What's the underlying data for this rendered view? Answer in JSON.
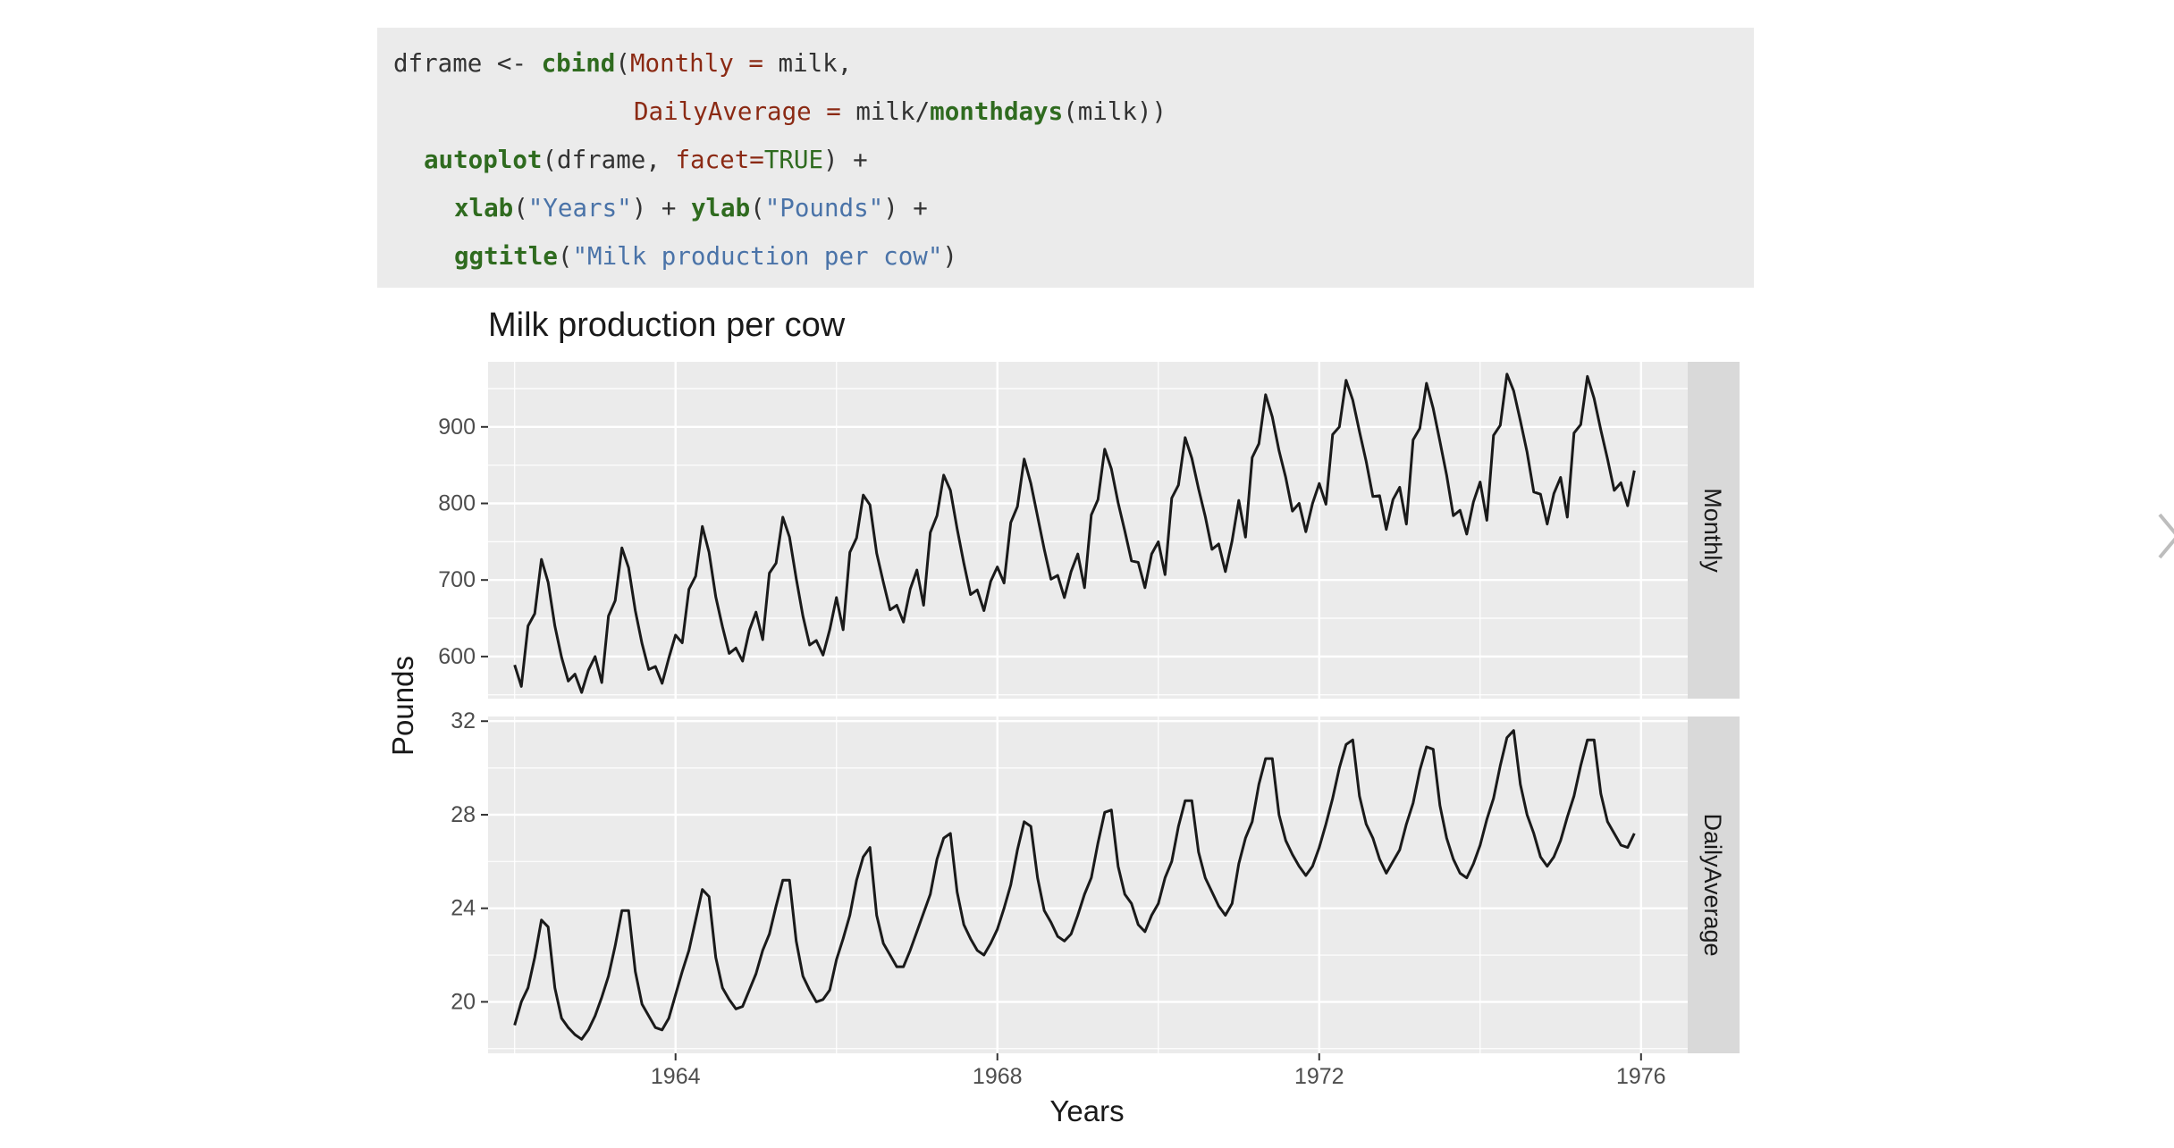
{
  "code": {
    "line1": {
      "p1": "dframe <- ",
      "fn": "cbind",
      "p2": "(",
      "arg": "Monthly = ",
      "p3": "milk,"
    },
    "line2": {
      "arg": "DailyAverage = ",
      "p1": "milk/",
      "fn": "monthdays",
      "p2": "(milk))"
    },
    "line3": {
      "fn": "autoplot",
      "p1": "(dframe, ",
      "arg": "facet=",
      "lit": "TRUE",
      "p2": ") +"
    },
    "line4": {
      "fn1": "xlab",
      "p1": "(",
      "str1": "\"Years\"",
      "p2": ") + ",
      "fn2": "ylab",
      "p3": "(",
      "str2": "\"Pounds\"",
      "p4": ") +"
    },
    "line5": {
      "fn": "ggtitle",
      "p1": "(",
      "str": "\"Milk production per cow\"",
      "p2": ")"
    }
  },
  "icons": {
    "next": "chevron-right-icon"
  },
  "colors": {
    "panel_bg": "#ebebeb",
    "strip_bg": "#d9d9d9",
    "line": "#1a1a1a",
    "grid": "#ffffff"
  },
  "chart_data": {
    "type": "line",
    "title": "Milk production per cow",
    "xlabel": "Years",
    "ylabel": "Pounds",
    "x_start": "1962-01",
    "x_end": "1975-12",
    "frequency": "monthly",
    "xlim": [
      1961.67,
      1976.58
    ],
    "x_ticks": [
      "1964",
      "1968",
      "1972",
      "1976"
    ],
    "legend": "none",
    "grid": true,
    "facets": [
      {
        "name": "Monthly",
        "ylim": [
          545,
          985
        ],
        "y_ticks": [
          "600",
          "700",
          "800",
          "900"
        ],
        "values": [
          589,
          561,
          640,
          656,
          727,
          697,
          640,
          599,
          568,
          577,
          553,
          582,
          600,
          566,
          653,
          673,
          742,
          716,
          660,
          617,
          583,
          587,
          565,
          598,
          628,
          618,
          688,
          705,
          770,
          736,
          678,
          639,
          604,
          611,
          594,
          634,
          658,
          622,
          709,
          722,
          782,
          756,
          702,
          653,
          615,
          621,
          602,
          635,
          677,
          635,
          736,
          755,
          811,
          798,
          735,
          697,
          661,
          667,
          645,
          688,
          713,
          667,
          762,
          784,
          837,
          817,
          767,
          722,
          681,
          687,
          660,
          698,
          717,
          696,
          775,
          796,
          858,
          826,
          783,
          740,
          701,
          706,
          677,
          711,
          734,
          690,
          785,
          805,
          871,
          845,
          801,
          764,
          725,
          723,
          690,
          734,
          750,
          707,
          807,
          824,
          886,
          859,
          819,
          783,
          740,
          747,
          711,
          751,
          804,
          756,
          860,
          878,
          942,
          913,
          869,
          834,
          790,
          800,
          763,
          800,
          826,
          799,
          890,
          900,
          961,
          935,
          894,
          855,
          809,
          810,
          766,
          805,
          821,
          773,
          883,
          898,
          957,
          924,
          881,
          837,
          784,
          791,
          760,
          802,
          828,
          778,
          889,
          902,
          969,
          947,
          908,
          867,
          815,
          812,
          773,
          813,
          834,
          782,
          892,
          903,
          966,
          937,
          896,
          858,
          817,
          827,
          797,
          843
        ]
      },
      {
        "name": "DailyAverage",
        "ylim": [
          17.8,
          32.2
        ],
        "y_ticks": [
          "20",
          "24",
          "28",
          "32"
        ],
        "values": [
          19.0,
          20.0,
          20.6,
          21.9,
          23.5,
          23.2,
          20.6,
          19.3,
          18.9,
          18.6,
          18.4,
          18.8,
          19.4,
          20.2,
          21.1,
          22.4,
          23.9,
          23.9,
          21.3,
          19.9,
          19.4,
          18.9,
          18.8,
          19.3,
          20.3,
          21.3,
          22.2,
          23.5,
          24.8,
          24.5,
          21.9,
          20.6,
          20.1,
          19.7,
          19.8,
          20.5,
          21.2,
          22.2,
          22.9,
          24.1,
          25.2,
          25.2,
          22.6,
          21.1,
          20.5,
          20.0,
          20.1,
          20.5,
          21.8,
          22.7,
          23.7,
          25.2,
          26.2,
          26.6,
          23.7,
          22.5,
          22.0,
          21.5,
          21.5,
          22.2,
          23.0,
          23.8,
          24.6,
          26.1,
          27.0,
          27.2,
          24.7,
          23.3,
          22.7,
          22.2,
          22.0,
          22.5,
          23.1,
          24.0,
          25.0,
          26.5,
          27.7,
          27.5,
          25.3,
          23.9,
          23.4,
          22.8,
          22.6,
          22.9,
          23.7,
          24.6,
          25.3,
          26.8,
          28.1,
          28.2,
          25.8,
          24.6,
          24.2,
          23.3,
          23.0,
          23.7,
          24.2,
          25.3,
          26.0,
          27.5,
          28.6,
          28.6,
          26.4,
          25.3,
          24.7,
          24.1,
          23.7,
          24.2,
          25.9,
          27.0,
          27.7,
          29.3,
          30.4,
          30.4,
          28.0,
          26.9,
          26.3,
          25.8,
          25.4,
          25.8,
          26.6,
          27.6,
          28.7,
          30.0,
          31.0,
          31.2,
          28.8,
          27.6,
          27.0,
          26.1,
          25.5,
          26.0,
          26.5,
          27.6,
          28.5,
          29.9,
          30.9,
          30.8,
          28.4,
          27.0,
          26.1,
          25.5,
          25.3,
          25.9,
          26.7,
          27.8,
          28.7,
          30.1,
          31.3,
          31.6,
          29.3,
          28.0,
          27.2,
          26.2,
          25.8,
          26.2,
          26.9,
          27.9,
          28.8,
          30.1,
          31.2,
          31.2,
          28.9,
          27.7,
          27.2,
          26.7,
          26.6,
          27.2
        ]
      }
    ]
  }
}
